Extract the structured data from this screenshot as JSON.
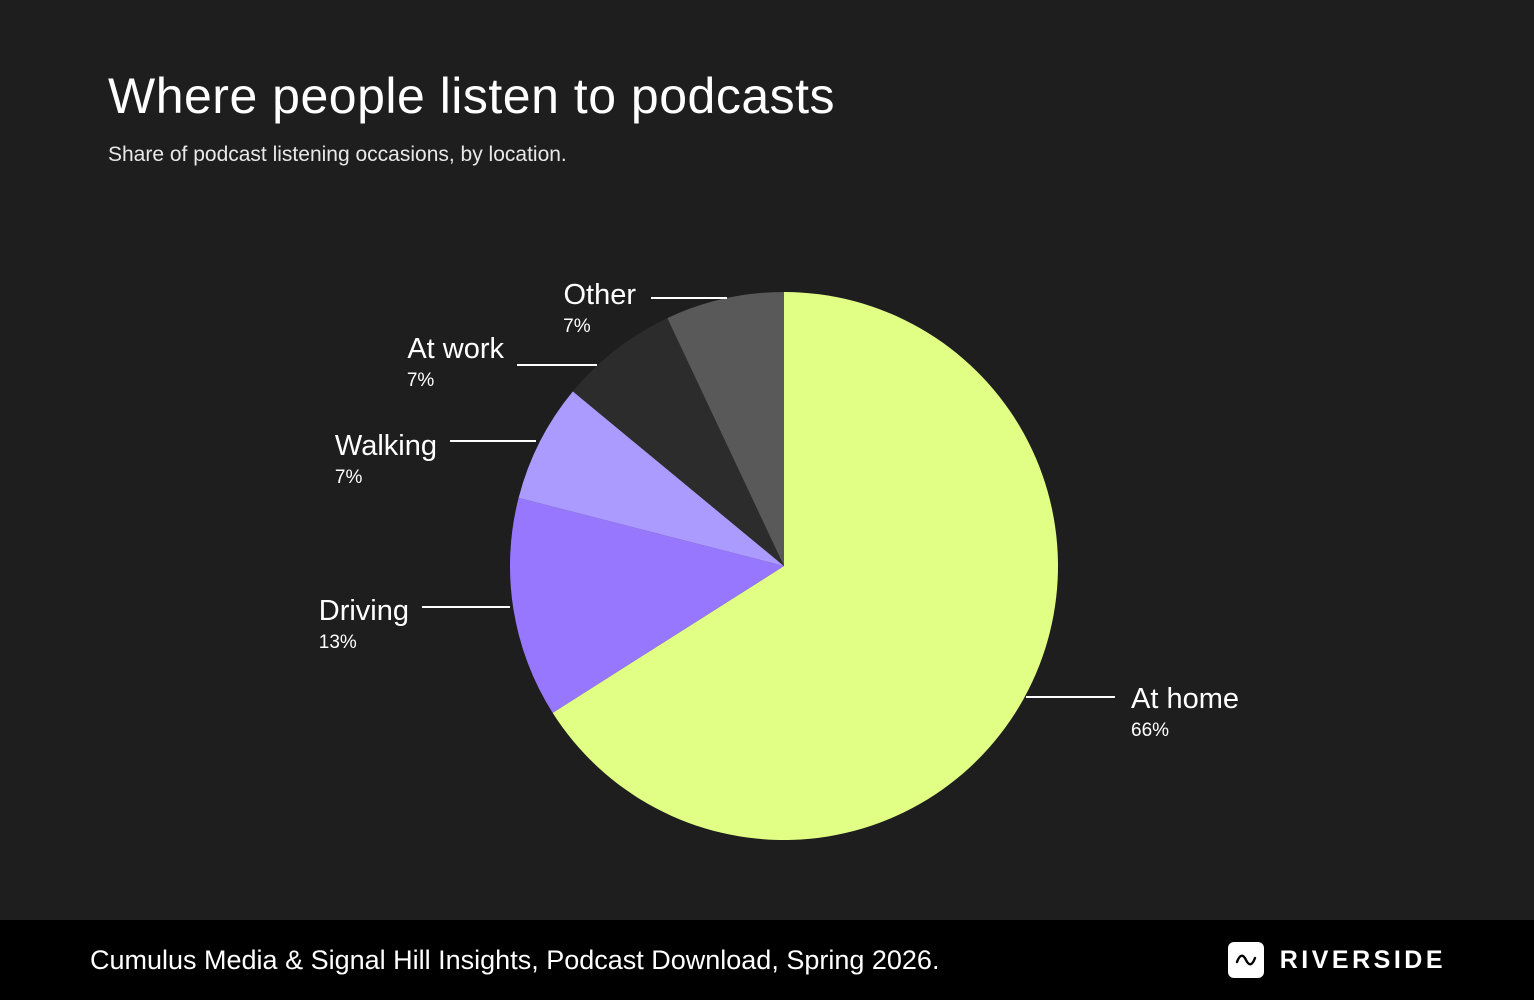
{
  "chart_data": {
    "type": "pie",
    "title": "Where people listen to podcasts",
    "subtitle": "Share of podcast listening occasions, by location.",
    "slices": [
      {
        "label": "At home",
        "value": 66,
        "display": "66%",
        "color": "#e1ff85"
      },
      {
        "label": "Driving",
        "value": 13,
        "display": "13%",
        "color": "#9877ff"
      },
      {
        "label": "Walking",
        "value": 7,
        "display": "7%",
        "color": "#ac9bff"
      },
      {
        "label": "At work",
        "value": 7,
        "display": "7%",
        "color": "#2c2c2c"
      },
      {
        "label": "Other",
        "value": 7,
        "display": "7%",
        "color": "#595959"
      }
    ]
  },
  "footer": {
    "source": "Cumulus Media & Signal Hill Insights, Podcast Download, Spring 2026.",
    "brand": "RIVERSIDE",
    "brand_icon": "wave-icon"
  }
}
